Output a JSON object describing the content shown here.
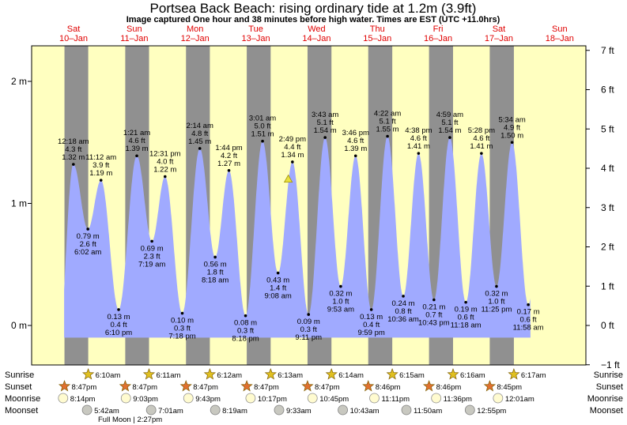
{
  "header": {
    "title": "Portsea Back Beach: rising  ordinary tide at 1.2m (3.9ft)",
    "subtitle": "Image captured One hour and 38 minutes before high water. Times are EST (UTC +11.0hrs)"
  },
  "colors": {
    "day": "#ffffc0",
    "night": "#909090",
    "water": "#a0aaff",
    "daylabel": "#e00000",
    "marker": "#e8e040"
  },
  "days": [
    {
      "name": "Sat",
      "date": "10–Jan"
    },
    {
      "name": "Sun",
      "date": "11–Jan"
    },
    {
      "name": "Mon",
      "date": "12–Jan"
    },
    {
      "name": "Tue",
      "date": "13–Jan"
    },
    {
      "name": "Wed",
      "date": "14–Jan"
    },
    {
      "name": "Thu",
      "date": "15–Jan"
    },
    {
      "name": "Fri",
      "date": "16–Jan"
    },
    {
      "name": "Sat",
      "date": "17–Jan"
    },
    {
      "name": "Sun",
      "date": "18–Jan"
    }
  ],
  "chart_data": {
    "type": "area",
    "x_unit": "day index from Sat 10-Jan midnight",
    "y_unit": "m",
    "ylim_m": [
      -0.33,
      2.1
    ],
    "left_axis": {
      "ticks": [
        0,
        1,
        2
      ],
      "labels": [
        "0 m",
        "1 m",
        "2 m"
      ]
    },
    "right_axis": {
      "ticks_ft": [
        -1,
        0,
        1,
        2,
        3,
        4,
        5,
        6,
        7
      ],
      "labels": [
        "−1 ft",
        "0 ft",
        "1 ft",
        "2 ft",
        "3 ft",
        "4 ft",
        "5 ft",
        "6 ft",
        "7 ft"
      ]
    },
    "current_level_m": 1.2,
    "current_time": "Wed 14-Jan 1:11pm",
    "extremes": [
      {
        "day": 1,
        "time": "12:18 am",
        "m": "1.32 m",
        "ft": "4.3 ft",
        "v": 1.32,
        "type": "high"
      },
      {
        "day": 1,
        "time": "6:02 am",
        "m": "0.79 m",
        "ft": "2.6 ft",
        "v": 0.79,
        "type": "low"
      },
      {
        "day": 1,
        "time": "11:12 am",
        "m": "1.19 m",
        "ft": "3.9 ft",
        "v": 1.19,
        "type": "high"
      },
      {
        "day": 1,
        "time": "6:10 pm",
        "m": "0.13 m",
        "ft": "0.4 ft",
        "v": 0.13,
        "type": "low"
      },
      {
        "day": 2,
        "time": "1:21 am",
        "m": "1.39 m",
        "ft": "4.6 ft",
        "v": 1.39,
        "type": "high"
      },
      {
        "day": 2,
        "time": "7:19 am",
        "m": "0.69 m",
        "ft": "2.3 ft",
        "v": 0.69,
        "type": "low"
      },
      {
        "day": 2,
        "time": "12:31 pm",
        "m": "1.22 m",
        "ft": "4.0 ft",
        "v": 1.22,
        "type": "high"
      },
      {
        "day": 2,
        "time": "7:18 pm",
        "m": "0.10 m",
        "ft": "0.3 ft",
        "v": 0.1,
        "type": "low"
      },
      {
        "day": 3,
        "time": "2:14 am",
        "m": "1.45 m",
        "ft": "4.8 ft",
        "v": 1.45,
        "type": "high"
      },
      {
        "day": 3,
        "time": "8:18 am",
        "m": "0.56 m",
        "ft": "1.8 ft",
        "v": 0.56,
        "type": "low"
      },
      {
        "day": 3,
        "time": "1:44 pm",
        "m": "1.27 m",
        "ft": "4.2 ft",
        "v": 1.27,
        "type": "high"
      },
      {
        "day": 3,
        "time": "8:18 pm",
        "m": "0.08 m",
        "ft": "0.3 ft",
        "v": 0.08,
        "type": "low"
      },
      {
        "day": 4,
        "time": "3:01 am",
        "m": "1.51 m",
        "ft": "5.0 ft",
        "v": 1.51,
        "type": "high"
      },
      {
        "day": 4,
        "time": "9:08 am",
        "m": "0.43 m",
        "ft": "1.4 ft",
        "v": 0.43,
        "type": "low"
      },
      {
        "day": 4,
        "time": "2:49 pm",
        "m": "1.34 m",
        "ft": "4.4 ft",
        "v": 1.34,
        "type": "high"
      },
      {
        "day": 4,
        "time": "9:11 pm",
        "m": "0.09 m",
        "ft": "0.3 ft",
        "v": 0.09,
        "type": "low"
      },
      {
        "day": 5,
        "time": "3:43 am",
        "m": "1.54 m",
        "ft": "5.1 ft",
        "v": 1.54,
        "type": "high"
      },
      {
        "day": 5,
        "time": "9:53 am",
        "m": "0.32 m",
        "ft": "1.0 ft",
        "v": 0.32,
        "type": "low"
      },
      {
        "day": 5,
        "time": "3:46 pm",
        "m": "1.39 m",
        "ft": "4.6 ft",
        "v": 1.39,
        "type": "high"
      },
      {
        "day": 5,
        "time": "9:59 pm",
        "m": "0.13 m",
        "ft": "0.4 ft",
        "v": 0.13,
        "type": "low"
      },
      {
        "day": 6,
        "time": "4:22 am",
        "m": "1.55 m",
        "ft": "5.1 ft",
        "v": 1.55,
        "type": "high"
      },
      {
        "day": 6,
        "time": "10:36 am",
        "m": "0.24 m",
        "ft": "0.8 ft",
        "v": 0.24,
        "type": "low"
      },
      {
        "day": 6,
        "time": "4:38 pm",
        "m": "1.41 m",
        "ft": "4.6 ft",
        "v": 1.41,
        "type": "high"
      },
      {
        "day": 6,
        "time": "10:43 pm",
        "m": "0.21 m",
        "ft": "0.7 ft",
        "v": 0.21,
        "type": "low"
      },
      {
        "day": 7,
        "time": "4:59 am",
        "m": "1.54 m",
        "ft": "5.1 ft",
        "v": 1.54,
        "type": "high"
      },
      {
        "day": 7,
        "time": "11:18 am",
        "m": "0.19 m",
        "ft": "0.6 ft",
        "v": 0.19,
        "type": "low"
      },
      {
        "day": 7,
        "time": "5:28 pm",
        "m": "1.41 m",
        "ft": "4.6 ft",
        "v": 1.41,
        "type": "high"
      },
      {
        "day": 7,
        "time": "11:25 pm",
        "m": "0.32 m",
        "ft": "1.0 ft",
        "v": 0.32,
        "type": "low"
      },
      {
        "day": 8,
        "time": "5:34 am",
        "m": "1.50 m",
        "ft": "4.9 ft",
        "v": 1.5,
        "type": "high"
      },
      {
        "day": 8,
        "time": "11:58 am",
        "m": "0.17 m",
        "ft": "0.6 ft",
        "v": 0.17,
        "type": "low"
      }
    ],
    "sun_moon": {
      "row_labels": [
        "Sunrise",
        "Sunset",
        "Moonrise",
        "Moonset"
      ],
      "sunrise": [
        {
          "day": 1,
          "time": "6:10am"
        },
        {
          "day": 2,
          "time": "6:11am"
        },
        {
          "day": 3,
          "time": "6:12am"
        },
        {
          "day": 4,
          "time": "6:13am"
        },
        {
          "day": 5,
          "time": "6:14am"
        },
        {
          "day": 6,
          "time": "6:15am"
        },
        {
          "day": 7,
          "time": "6:16am"
        },
        {
          "day": 8,
          "time": "6:17am"
        }
      ],
      "sunset": [
        {
          "day": 0,
          "time": "8:47pm"
        },
        {
          "day": 1,
          "time": "8:47pm"
        },
        {
          "day": 2,
          "time": "8:47pm"
        },
        {
          "day": 3,
          "time": "8:47pm"
        },
        {
          "day": 4,
          "time": "8:47pm"
        },
        {
          "day": 5,
          "time": "8:46pm"
        },
        {
          "day": 6,
          "time": "8:46pm"
        },
        {
          "day": 7,
          "time": "8:45pm"
        }
      ],
      "moonrise": [
        {
          "day": 0,
          "time": "8:14pm"
        },
        {
          "day": 1,
          "time": "9:03pm"
        },
        {
          "day": 2,
          "time": "9:43pm"
        },
        {
          "day": 3,
          "time": "10:17pm"
        },
        {
          "day": 4,
          "time": "10:45pm"
        },
        {
          "day": 5,
          "time": "11:11pm"
        },
        {
          "day": 6,
          "time": "11:36pm"
        },
        {
          "day": 8,
          "time": "12:01am"
        }
      ],
      "moonset": [
        {
          "day": 1,
          "time": "5:42am"
        },
        {
          "day": 2,
          "time": "7:01am"
        },
        {
          "day": 3,
          "time": "8:19am"
        },
        {
          "day": 4,
          "time": "9:33am"
        },
        {
          "day": 5,
          "time": "10:43am"
        },
        {
          "day": 6,
          "time": "11:50am"
        },
        {
          "day": 7,
          "time": "12:55pm"
        }
      ],
      "full_moon": "Full Moon | 2:27pm"
    }
  }
}
